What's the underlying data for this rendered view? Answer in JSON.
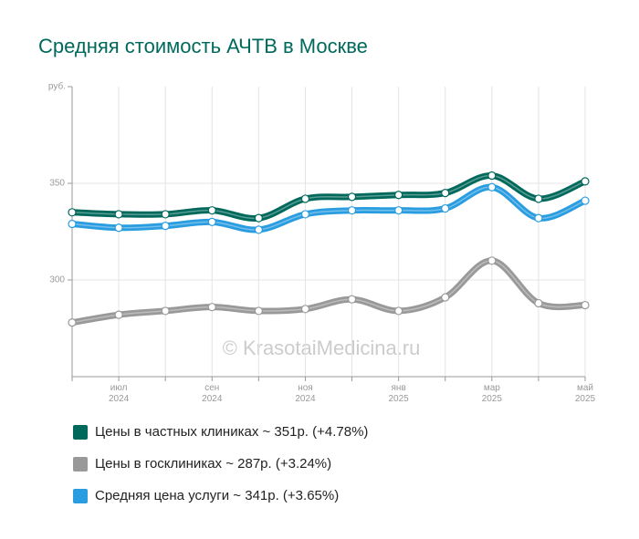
{
  "chart_data": {
    "type": "line",
    "title": "Средняя стоимость АЧТВ в Москве",
    "y_label": "руб.",
    "watermark": "© KrasotaiMedicina.ru",
    "categories": [
      null,
      "июл 2024",
      null,
      "сен 2024",
      null,
      "ноя 2024",
      null,
      "янв 2025",
      null,
      "мар 2025",
      null,
      "май 2025"
    ],
    "ylim": [
      250,
      400
    ],
    "yticks": [
      300,
      350
    ],
    "grid": true,
    "series": [
      {
        "name": "Цены в частных клиниках ~ 351р. (+4.78%)",
        "color": "#00695c",
        "values": [
          335,
          334,
          334,
          336,
          332,
          342,
          343,
          344,
          345,
          354,
          342,
          351
        ]
      },
      {
        "name": "Цены в госклиниках ~ 287р. (+3.24%)",
        "color": "#999999",
        "values": [
          278,
          282,
          284,
          286,
          284,
          285,
          290,
          284,
          291,
          310,
          288,
          287
        ]
      },
      {
        "name": "Средняя цена услуги ~ 341р. (+3.65%)",
        "color": "#2a9de0",
        "values": [
          329,
          327,
          328,
          330,
          326,
          334,
          336,
          336,
          337,
          348,
          332,
          341
        ]
      }
    ]
  }
}
